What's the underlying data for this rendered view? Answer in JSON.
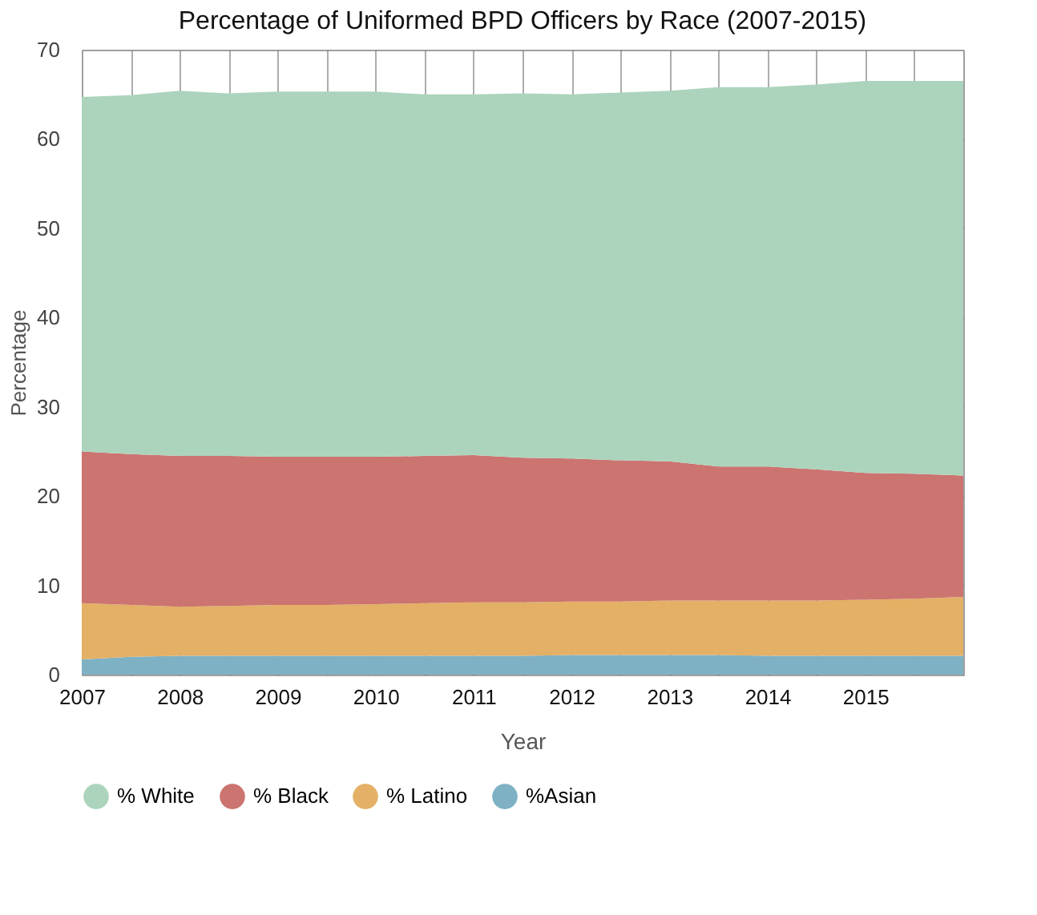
{
  "chart_data": {
    "type": "area",
    "title": "Percentage of Uniformed BPD Officers by Race (2007-2015)",
    "xlabel": "Year",
    "ylabel": "Percentage",
    "categories": [
      "2007",
      null,
      "2008",
      null,
      "2009",
      null,
      "2010",
      null,
      "2011",
      null,
      "2012",
      null,
      "2013",
      null,
      "2014",
      null,
      "2015",
      null,
      null
    ],
    "stacked": true,
    "ylim": [
      0,
      70
    ],
    "yticks": [
      0,
      10,
      20,
      30,
      40,
      50,
      60,
      70
    ],
    "grid": true,
    "legend": "bottom",
    "series": [
      {
        "name": "%Asian",
        "color": "#7fb1c4",
        "values": [
          1.7,
          2.0,
          2.1,
          2.1,
          2.1,
          2.1,
          2.1,
          2.1,
          2.1,
          2.1,
          2.2,
          2.2,
          2.2,
          2.2,
          2.1,
          2.1,
          2.1,
          2.1,
          2.1
        ]
      },
      {
        "name": "% Latino",
        "color": "#e3b066",
        "values": [
          6.3,
          5.8,
          5.5,
          5.6,
          5.7,
          5.7,
          5.8,
          5.9,
          6.0,
          6.0,
          6.0,
          6.0,
          6.1,
          6.1,
          6.2,
          6.2,
          6.3,
          6.4,
          6.6
        ]
      },
      {
        "name": "% Black",
        "color": "#cc7470",
        "values": [
          17.0,
          16.9,
          16.9,
          16.8,
          16.6,
          16.6,
          16.5,
          16.5,
          16.5,
          16.2,
          16.0,
          15.8,
          15.6,
          15.0,
          15.0,
          14.7,
          14.2,
          14.0,
          13.6
        ]
      },
      {
        "name": "% White",
        "color": "#acd4bd",
        "values": [
          39.7,
          40.2,
          40.9,
          40.6,
          40.9,
          40.9,
          40.9,
          40.5,
          40.4,
          40.8,
          40.8,
          41.2,
          41.5,
          42.5,
          42.5,
          43.1,
          43.9,
          44.0,
          44.2
        ]
      }
    ]
  }
}
